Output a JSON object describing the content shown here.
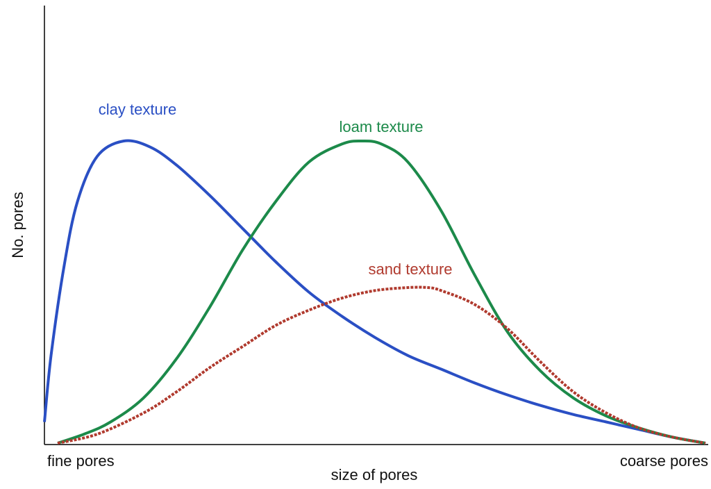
{
  "chart_data": {
    "type": "line",
    "title": "",
    "xlabel": "size of pores",
    "ylabel": "No. pores",
    "x_tick_labels": {
      "left": "fine pores",
      "right": "coarse pores"
    },
    "xlim": [
      0,
      1
    ],
    "ylim": [
      0,
      1
    ],
    "grid": false,
    "legend": "labels placed next to the curves",
    "series": [
      {
        "name": "clay texture",
        "color": "#2a4fc4",
        "dashed": false,
        "x": [
          0,
          0.01,
          0.03,
          0.05,
          0.08,
          0.12,
          0.16,
          0.2,
          0.25,
          0.3,
          0.35,
          0.4,
          0.45,
          0.5,
          0.55,
          0.6,
          0.65,
          0.7,
          0.75,
          0.8,
          0.85,
          0.9,
          0.95,
          1.0
        ],
        "y": [
          0.07,
          0.29,
          0.59,
          0.8,
          0.95,
          1.0,
          0.98,
          0.92,
          0.82,
          0.71,
          0.6,
          0.5,
          0.42,
          0.35,
          0.29,
          0.245,
          0.2,
          0.16,
          0.125,
          0.095,
          0.07,
          0.045,
          0.02,
          0.0
        ]
      },
      {
        "name": "loam texture",
        "color": "#1c8a4a",
        "dashed": false,
        "x": [
          0.02,
          0.06,
          0.1,
          0.15,
          0.2,
          0.25,
          0.3,
          0.35,
          0.4,
          0.45,
          0.48,
          0.51,
          0.55,
          0.6,
          0.65,
          0.7,
          0.75,
          0.8,
          0.85,
          0.9,
          0.95,
          1.0
        ],
        "y": [
          0.0,
          0.03,
          0.07,
          0.15,
          0.28,
          0.45,
          0.64,
          0.8,
          0.93,
          0.99,
          1.0,
          0.99,
          0.93,
          0.77,
          0.56,
          0.37,
          0.24,
          0.15,
          0.09,
          0.05,
          0.02,
          0.0
        ]
      },
      {
        "name": "sand texture",
        "color": "#b03a2e",
        "dashed": true,
        "x": [
          0.02,
          0.08,
          0.15,
          0.2,
          0.25,
          0.3,
          0.35,
          0.4,
          0.45,
          0.5,
          0.55,
          0.58,
          0.6,
          0.65,
          0.7,
          0.75,
          0.8,
          0.85,
          0.9,
          0.95,
          1.0
        ],
        "y": [
          0.0,
          0.03,
          0.1,
          0.17,
          0.25,
          0.32,
          0.39,
          0.44,
          0.48,
          0.505,
          0.515,
          0.515,
          0.505,
          0.46,
          0.38,
          0.27,
          0.17,
          0.1,
          0.05,
          0.02,
          0.0
        ]
      }
    ]
  }
}
